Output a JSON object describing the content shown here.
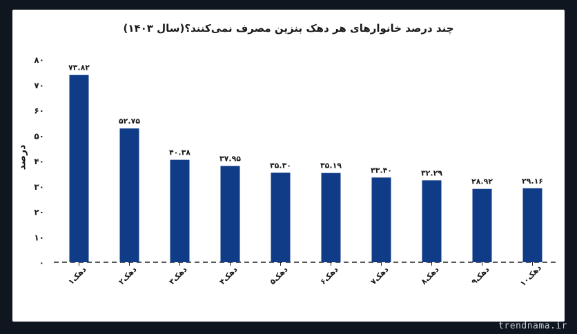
{
  "colors": {
    "bar": "#0f3b87",
    "axis": "#222222",
    "text": "#1a1a1a",
    "background": "#ffffff",
    "page": "#0f1620"
  },
  "footer": {
    "site": "trendnama.ir"
  },
  "chart_data": {
    "type": "bar",
    "title": "چند درصد خانوارهای هر دهک بنزین مصرف نمی‌کنند؟(سال ۱۴۰۳)",
    "xlabel": "",
    "ylabel": "درصد",
    "categories": [
      "دهک۱",
      "دهک۲",
      "دهک۳",
      "دهک۴",
      "دهک۵",
      "دهک۶",
      "دهک۷",
      "دهک۸",
      "دهک۹",
      "دهک۱۰"
    ],
    "values": [
      73.82,
      52.75,
      40.38,
      37.95,
      35.3,
      35.19,
      33.4,
      32.29,
      28.92,
      29.16
    ],
    "value_labels": [
      "۷۳.۸۲",
      "۵۲.۷۵",
      "۴۰.۳۸",
      "۳۷.۹۵",
      "۳۵.۳۰",
      "۳۵.۱۹",
      "۳۳.۴۰",
      "۳۲.۲۹",
      "۲۸.۹۲",
      "۲۹.۱۶"
    ],
    "ylim": [
      0,
      80
    ],
    "yticks": [
      0,
      10,
      20,
      30,
      40,
      50,
      60,
      70,
      80
    ],
    "ytick_labels": [
      "۰",
      "۱۰",
      "۲۰",
      "۳۰",
      "۴۰",
      "۵۰",
      "۶۰",
      "۷۰",
      "۸۰"
    ],
    "grid": false,
    "legend": "none"
  }
}
